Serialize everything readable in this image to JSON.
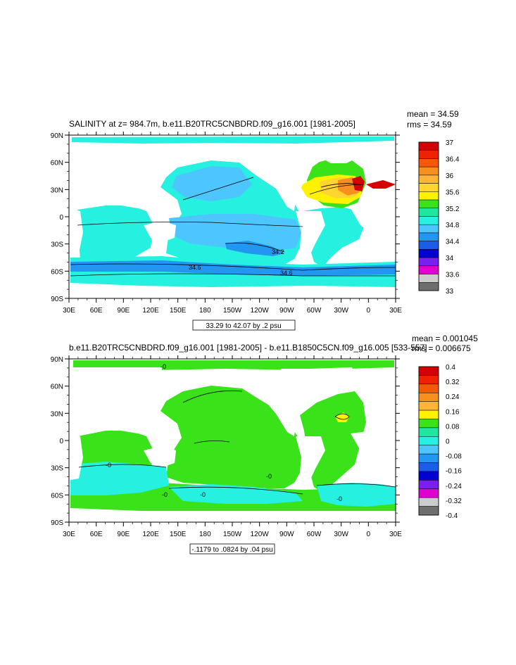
{
  "panels": [
    {
      "title": "SALINITY at z= 984.7m, b.e11.B20TRC5CNBDRD.f09_g16.001 [1981-2005]",
      "stats": [
        "mean = 34.59",
        "rms = 34.59"
      ],
      "contour_info": "33.29 to 42.07 by .2 psu",
      "contour_labels": [
        "34.2",
        "34.6",
        "34.6"
      ],
      "colorbar": {
        "labels": [
          "37",
          "36.4",
          "36",
          "35.6",
          "35.2",
          "34.8",
          "34.4",
          "34",
          "33.6",
          "33"
        ],
        "colors": [
          "#d40000",
          "#ee2200",
          "#f55a00",
          "#f7901e",
          "#fcb53a",
          "#ffd630",
          "#fff200",
          "#39e219",
          "#20e6a0",
          "#26f0e0",
          "#4dc6ff",
          "#2296f0",
          "#1a5de6",
          "#0000d0",
          "#7a1ff0",
          "#e000d0",
          "#cccccc",
          "#6e6e6e"
        ]
      }
    },
    {
      "title": "b.e11.B20TRC5CNBDRD.f09_g16.001 [1981-2005] - b.e11.B1850C5CN.f09_g16.005 [533-557]",
      "stats": [
        "mean = 0.001045",
        "rms = 0.006675"
      ],
      "contour_info": "-.1179 to .0824 by .04 psu",
      "contour_labels": [
        "-0",
        "-0",
        "-0",
        "-0",
        "-0",
        "-0"
      ],
      "colorbar": {
        "labels": [
          "0.4",
          "0.32",
          "0.24",
          "0.16",
          "0.08",
          "0",
          "-0.08",
          "-0.16",
          "-0.24",
          "-0.32",
          "-0.4"
        ],
        "colors": [
          "#d40000",
          "#ee2200",
          "#f55a00",
          "#f7901e",
          "#fcb53a",
          "#fff200",
          "#39e219",
          "#20e6a0",
          "#26f0e0",
          "#4dc6ff",
          "#2296f0",
          "#1a5de6",
          "#0000d0",
          "#7a1ff0",
          "#e000d0",
          "#cccccc",
          "#6e6e6e"
        ]
      }
    }
  ],
  "chart_data": [
    {
      "type": "heatmap",
      "title": "SALINITY at z= 984.7m, b.e11.B20TRC5CNBDRD.f09_g16.001 [1981-2005]",
      "units": "psu",
      "x_ticks": [
        "30E",
        "60E",
        "90E",
        "120E",
        "150E",
        "180",
        "150W",
        "120W",
        "90W",
        "60W",
        "30W",
        "0",
        "30E"
      ],
      "y_ticks": [
        "90N",
        "60N",
        "30N",
        "0",
        "30S",
        "60S",
        "90S"
      ],
      "color_levels": [
        33,
        33.6,
        34,
        34.4,
        34.8,
        35.2,
        35.6,
        36,
        36.4,
        37
      ],
      "contour_range": [
        33.29,
        42.07
      ],
      "contour_interval": 0.2,
      "mean": 34.59,
      "rms": 34.59
    },
    {
      "type": "heatmap",
      "title": "b.e11.B20TRC5CNBDRD.f09_g16.001 [1981-2005] - b.e11.B1850C5CN.f09_g16.005 [533-557]",
      "units": "psu",
      "x_ticks": [
        "30E",
        "60E",
        "90E",
        "120E",
        "150E",
        "180",
        "150W",
        "120W",
        "90W",
        "60W",
        "30W",
        "0",
        "30E"
      ],
      "y_ticks": [
        "90N",
        "60N",
        "30N",
        "0",
        "30S",
        "60S",
        "90S"
      ],
      "color_levels": [
        -0.4,
        -0.32,
        -0.24,
        -0.16,
        -0.08,
        0,
        0.08,
        0.16,
        0.24,
        0.32,
        0.4
      ],
      "contour_range": [
        -0.1179,
        0.0824
      ],
      "contour_interval": 0.04,
      "mean": 0.001045,
      "rms": 0.006675
    }
  ]
}
